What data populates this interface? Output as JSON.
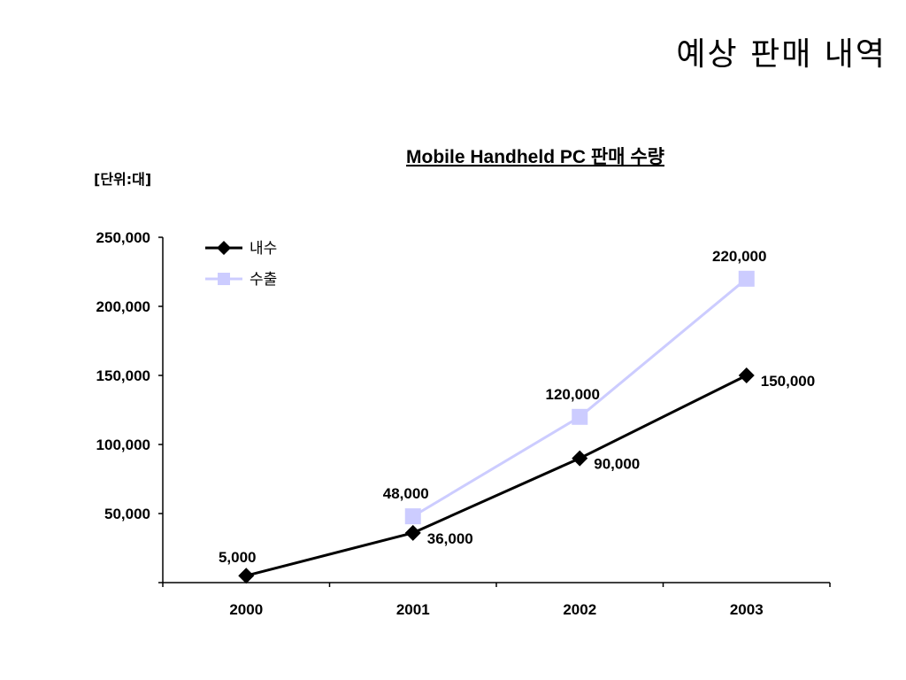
{
  "slide": {
    "title": "예상 판매 내역"
  },
  "colors": {
    "series1": "#000000",
    "series2": "#ccccff",
    "axis": "#000000"
  },
  "chart_data": {
    "type": "line",
    "title": "Mobile Handheld PC 판매 수량",
    "unit_label": "[단위:대]",
    "xlabel": "",
    "ylabel": "",
    "categories": [
      "2000",
      "2001",
      "2002",
      "2003"
    ],
    "ylim": [
      0,
      250000
    ],
    "yticks": [
      50000,
      100000,
      150000,
      200000,
      250000
    ],
    "ytick_labels": [
      "50,000",
      "100,000",
      "150,000",
      "200,000",
      "250,000"
    ],
    "grid": false,
    "legend_position": "top-left",
    "series": [
      {
        "name": "내수",
        "marker": "diamond",
        "color": "#000000",
        "values": [
          5000,
          36000,
          90000,
          150000
        ],
        "labels": [
          "5,000",
          "36,000",
          "90,000",
          "150,000"
        ]
      },
      {
        "name": "수출",
        "marker": "square",
        "color": "#ccccff",
        "values": [
          null,
          48000,
          120000,
          220000
        ],
        "labels": [
          "",
          "48,000",
          "120,000",
          "220,000"
        ]
      }
    ]
  }
}
